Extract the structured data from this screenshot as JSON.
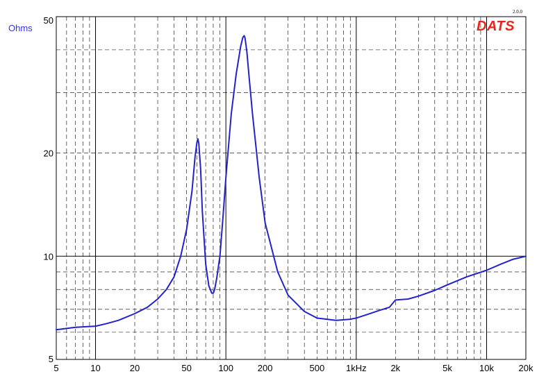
{
  "chart_data": {
    "type": "line",
    "x_scale": "log",
    "y_scale": "log",
    "xlim": [
      5,
      20000
    ],
    "ylim": [
      5,
      50
    ],
    "ylabel": "Ohms",
    "grid": true,
    "x_ticks": [
      {
        "v": 5,
        "label": "5"
      },
      {
        "v": 10,
        "label": "10"
      },
      {
        "v": 20,
        "label": "20"
      },
      {
        "v": 50,
        "label": "50"
      },
      {
        "v": 100,
        "label": "100"
      },
      {
        "v": 200,
        "label": "200"
      },
      {
        "v": 500,
        "label": "500"
      },
      {
        "v": 1000,
        "label": "1kHz"
      },
      {
        "v": 2000,
        "label": "2k"
      },
      {
        "v": 5000,
        "label": "5k"
      },
      {
        "v": 10000,
        "label": "10k"
      },
      {
        "v": 20000,
        "label": "20k"
      }
    ],
    "y_ticks": [
      {
        "v": 5,
        "label": "5"
      },
      {
        "v": 10,
        "label": "10"
      },
      {
        "v": 20,
        "label": "20"
      },
      {
        "v": 50,
        "label": "50"
      }
    ],
    "series": [
      {
        "color": "#2222cc",
        "x": [
          5,
          7,
          10,
          12,
          15,
          20,
          25,
          30,
          35,
          40,
          45,
          50,
          55,
          58,
          60,
          61,
          62,
          64,
          66,
          70,
          74,
          78,
          80,
          82,
          85,
          90,
          95,
          100,
          110,
          120,
          130,
          135,
          138,
          140,
          145,
          150,
          160,
          180,
          200,
          250,
          300,
          400,
          500,
          700,
          900,
          1000,
          1200,
          1500,
          1800,
          2000,
          2500,
          3000,
          4000,
          5000,
          7000,
          10000,
          13000,
          16000,
          18000,
          20000
        ],
        "y": [
          6.1,
          6.2,
          6.25,
          6.35,
          6.5,
          6.8,
          7.1,
          7.5,
          8.0,
          8.7,
          10.0,
          12.0,
          15.5,
          19.5,
          21.5,
          22.0,
          21.3,
          18.0,
          13.5,
          9.5,
          8.2,
          7.8,
          7.8,
          8.0,
          8.6,
          10.0,
          13.0,
          17.0,
          26.0,
          34.0,
          41.0,
          43.5,
          44.0,
          43.5,
          39.5,
          34.0,
          26.0,
          17.0,
          12.5,
          9.0,
          7.7,
          6.9,
          6.6,
          6.5,
          6.55,
          6.6,
          6.75,
          6.95,
          7.1,
          7.45,
          7.5,
          7.65,
          7.95,
          8.25,
          8.7,
          9.1,
          9.5,
          9.8,
          9.9,
          10.0
        ]
      }
    ]
  },
  "labels": {
    "unit": "Ohms",
    "brand": "DATS",
    "version": "2.0.0"
  }
}
